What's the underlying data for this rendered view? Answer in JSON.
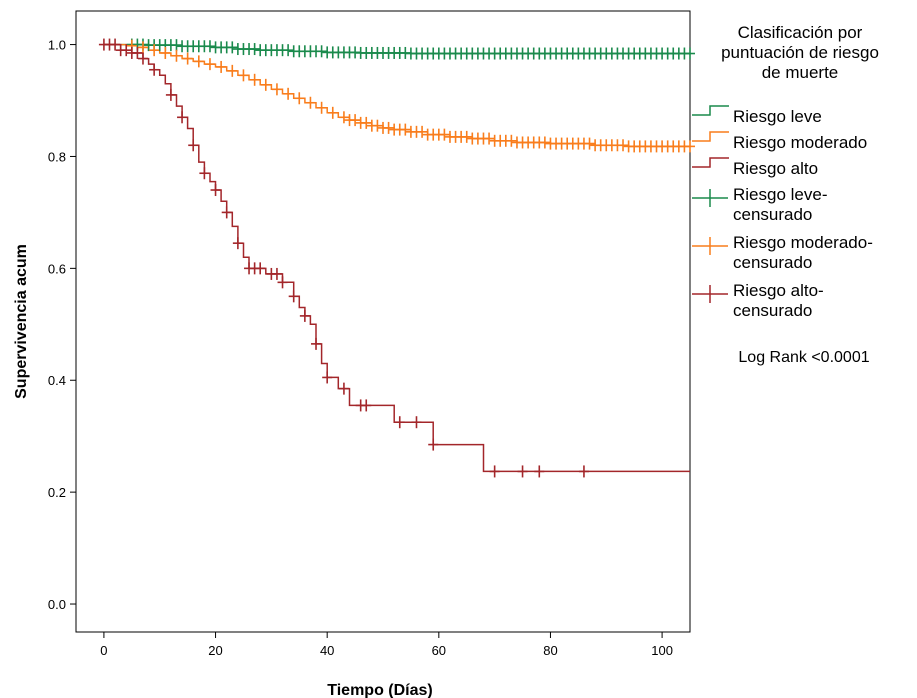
{
  "chart_data": {
    "type": "line",
    "title": "",
    "xlabel": "Tiempo (Días)",
    "ylabel": "Supervivencia acum",
    "xlim": [
      -5,
      105
    ],
    "ylim": [
      -0.05,
      1.06
    ],
    "x_ticks": [
      0,
      20,
      40,
      60,
      80,
      100
    ],
    "x_tick_labels": [
      "0",
      "20",
      "40",
      "60",
      "80",
      "100"
    ],
    "y_ticks": [
      0.0,
      0.2,
      0.4,
      0.6,
      0.8,
      1.0
    ],
    "y_tick_labels": [
      "0.0",
      "0.2",
      "0.4",
      "0.6",
      "0.8",
      "1.0"
    ],
    "grid": false,
    "legend": {
      "title": [
        "Clasificación por",
        "puntuación de riesgo",
        "de muerte"
      ],
      "placement": "right",
      "entries": [
        {
          "lines": [
            "Riesgo leve"
          ],
          "kind": "line",
          "color": "#1a8a4c"
        },
        {
          "lines": [
            "Riesgo moderado"
          ],
          "kind": "line",
          "color": "#f97d1c"
        },
        {
          "lines": [
            "Riesgo alto"
          ],
          "kind": "line",
          "color": "#a3262a"
        },
        {
          "lines": [
            "Riesgo leve-",
            "censurado"
          ],
          "kind": "cross",
          "color": "#1a8a4c"
        },
        {
          "lines": [
            "Riesgo moderado-",
            "censurado"
          ],
          "kind": "cross",
          "color": "#f97d1c"
        },
        {
          "lines": [
            "Riesgo alto-",
            "censurado"
          ],
          "kind": "cross",
          "color": "#a3262a"
        }
      ]
    },
    "annotation": "Log Rank <0.0001",
    "series": [
      {
        "name": "Riesgo leve",
        "color": "#1a8a4c",
        "steps": [
          [
            0,
            1.0
          ],
          [
            8,
            0.999
          ],
          [
            14,
            0.997
          ],
          [
            20,
            0.995
          ],
          [
            24,
            0.992
          ],
          [
            28,
            0.99
          ],
          [
            34,
            0.988
          ],
          [
            40,
            0.986
          ],
          [
            46,
            0.985
          ],
          [
            55,
            0.984
          ],
          [
            65,
            0.984
          ],
          [
            105,
            0.984
          ]
        ],
        "censored": [
          5,
          6,
          7,
          8,
          9,
          10,
          11,
          12,
          13,
          14,
          15,
          16,
          17,
          18,
          19,
          20,
          21,
          22,
          23,
          24,
          25,
          26,
          27,
          28,
          29,
          30,
          31,
          32,
          33,
          34,
          35,
          36,
          37,
          38,
          39,
          40,
          41,
          42,
          43,
          44,
          45,
          46,
          47,
          48,
          49,
          50,
          51,
          52,
          53,
          54,
          55,
          56,
          57,
          58,
          59,
          60,
          61,
          62,
          63,
          64,
          65,
          66,
          67,
          68,
          69,
          70,
          71,
          72,
          73,
          74,
          75,
          76,
          77,
          78,
          79,
          80,
          81,
          82,
          83,
          84,
          85,
          86,
          87,
          88,
          89,
          90,
          91,
          92,
          93,
          94,
          95,
          96,
          97,
          98,
          99,
          100,
          101,
          102,
          103,
          104,
          105
        ]
      },
      {
        "name": "Riesgo moderado",
        "color": "#f97d1c",
        "steps": [
          [
            0,
            1.0
          ],
          [
            4,
            0.998
          ],
          [
            6,
            0.995
          ],
          [
            8,
            0.99
          ],
          [
            10,
            0.985
          ],
          [
            12,
            0.98
          ],
          [
            14,
            0.975
          ],
          [
            16,
            0.97
          ],
          [
            18,
            0.965
          ],
          [
            20,
            0.96
          ],
          [
            22,
            0.953
          ],
          [
            24,
            0.945
          ],
          [
            26,
            0.937
          ],
          [
            28,
            0.928
          ],
          [
            30,
            0.92
          ],
          [
            32,
            0.912
          ],
          [
            34,
            0.904
          ],
          [
            36,
            0.896
          ],
          [
            38,
            0.887
          ],
          [
            40,
            0.878
          ],
          [
            42,
            0.87
          ],
          [
            44,
            0.865
          ],
          [
            46,
            0.86
          ],
          [
            48,
            0.855
          ],
          [
            50,
            0.851
          ],
          [
            52,
            0.848
          ],
          [
            55,
            0.844
          ],
          [
            58,
            0.839
          ],
          [
            62,
            0.835
          ],
          [
            66,
            0.832
          ],
          [
            70,
            0.828
          ],
          [
            74,
            0.825
          ],
          [
            80,
            0.823
          ],
          [
            88,
            0.82
          ],
          [
            94,
            0.818
          ],
          [
            105,
            0.818
          ]
        ],
        "censored": [
          5,
          7,
          9,
          11,
          13,
          15,
          17,
          19,
          21,
          23,
          25,
          27,
          29,
          31,
          33,
          35,
          37,
          39,
          41,
          43,
          44,
          45,
          46,
          47,
          48,
          49,
          50,
          51,
          52,
          53,
          54,
          55,
          56,
          57,
          58,
          59,
          60,
          61,
          62,
          63,
          64,
          65,
          66,
          67,
          68,
          69,
          70,
          71,
          72,
          73,
          74,
          75,
          76,
          77,
          78,
          79,
          80,
          81,
          82,
          83,
          84,
          85,
          86,
          87,
          88,
          89,
          90,
          91,
          92,
          93,
          94,
          95,
          96,
          97,
          98,
          99,
          100,
          101,
          102,
          103,
          104,
          105
        ]
      },
      {
        "name": "Riesgo alto",
        "color": "#a3262a",
        "steps": [
          [
            0,
            1.0
          ],
          [
            3,
            0.99
          ],
          [
            5,
            0.985
          ],
          [
            7,
            0.975
          ],
          [
            8,
            0.965
          ],
          [
            9,
            0.955
          ],
          [
            10,
            0.945
          ],
          [
            11,
            0.93
          ],
          [
            12,
            0.91
          ],
          [
            13,
            0.89
          ],
          [
            14,
            0.87
          ],
          [
            15,
            0.85
          ],
          [
            16,
            0.82
          ],
          [
            17,
            0.79
          ],
          [
            18,
            0.77
          ],
          [
            19,
            0.755
          ],
          [
            20,
            0.74
          ],
          [
            21,
            0.72
          ],
          [
            22,
            0.7
          ],
          [
            23,
            0.675
          ],
          [
            24,
            0.645
          ],
          [
            25,
            0.62
          ],
          [
            26,
            0.6
          ],
          [
            29,
            0.59
          ],
          [
            32,
            0.575
          ],
          [
            34,
            0.55
          ],
          [
            35,
            0.53
          ],
          [
            36,
            0.515
          ],
          [
            37,
            0.5
          ],
          [
            38,
            0.465
          ],
          [
            39,
            0.43
          ],
          [
            40,
            0.405
          ],
          [
            42,
            0.385
          ],
          [
            44,
            0.355
          ],
          [
            52,
            0.325
          ],
          [
            59,
            0.285
          ],
          [
            68,
            0.237
          ],
          [
            105,
            0.237
          ]
        ],
        "censored": [
          0,
          1,
          2,
          3,
          4,
          5,
          6,
          7,
          9,
          12,
          14,
          16,
          18,
          20,
          22,
          24,
          26,
          27,
          28,
          30,
          31,
          32,
          34,
          36,
          38,
          40,
          43,
          46,
          47,
          53,
          56,
          59,
          70,
          75,
          78,
          86
        ]
      }
    ]
  }
}
